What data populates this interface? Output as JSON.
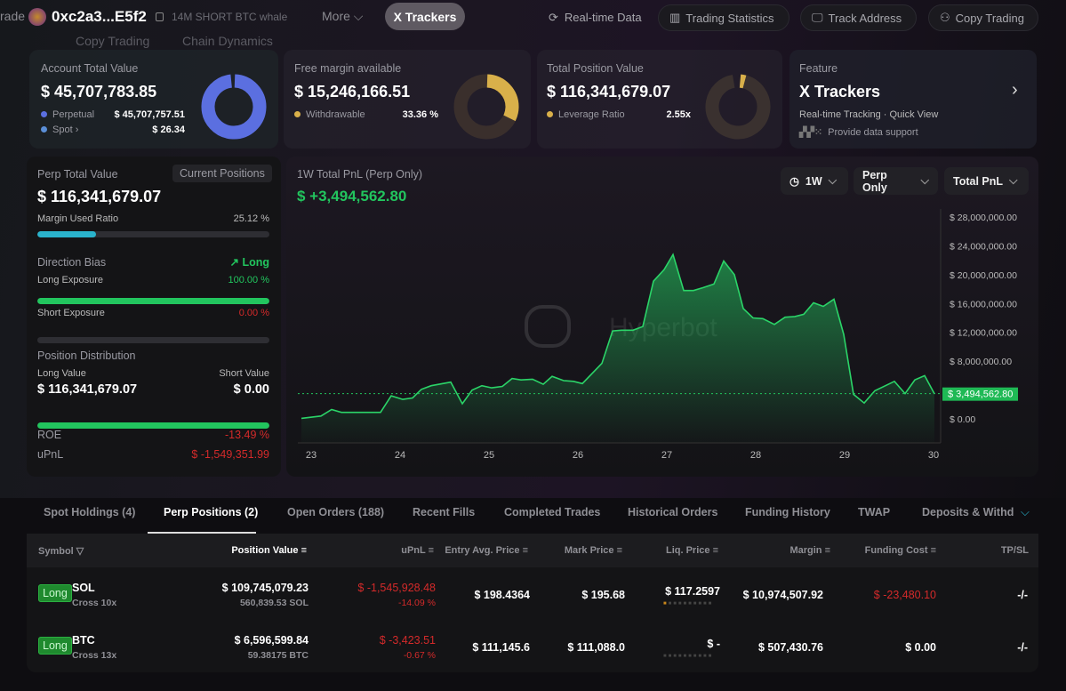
{
  "nav": {
    "trade": "rade",
    "copy_trading_ghost": "Copy Trading",
    "address": "0xc2a3...E5f2",
    "alias": "14M SHORT BTC whale",
    "chain_dynamics": "Chain Dynamics",
    "more": "More",
    "x_trackers": "X Trackers",
    "realtime": "Real-time Data",
    "trading_stats": "Trading Statistics",
    "track_address": "Track Address",
    "copy_trading": "Copy Trading"
  },
  "cards": {
    "account": {
      "title": "Account Total Value",
      "value": "$ 45,707,783.85",
      "perpetual_label": "Perpetual",
      "perpetual_value": "$ 45,707,757.51",
      "spot_label": "Spot",
      "spot_value": "$ 26.34",
      "color_perp": "#5b6fe0",
      "color_spot": "#5b8fd8"
    },
    "free_margin": {
      "title": "Free margin available",
      "value": "$ 15,246,166.51",
      "withdrawable_label": "Withdrawable",
      "withdrawable_value": "33.36 %",
      "fraction": 0.3336,
      "color": "#d9b04a"
    },
    "position": {
      "title": "Total Position Value",
      "value": "$ 116,341,679.07",
      "leverage_label": "Leverage Ratio",
      "leverage_value": "2.55x",
      "color": "#d9b04a"
    },
    "feature": {
      "title": "Feature",
      "name": "X Trackers",
      "desc": "Real-time Tracking · Quick View",
      "support": "Provide data support"
    }
  },
  "perp": {
    "title": "Perp Total Value",
    "current_positions": "Current Positions",
    "value": "$ 116,341,679.07",
    "margin_label": "Margin Used Ratio",
    "margin_value": "25.12 %",
    "margin_fraction": 0.2512,
    "bias_label": "Direction Bias",
    "bias_value": "Long",
    "long_exposure_label": "Long Exposure",
    "long_exposure_value": "100.00 %",
    "short_exposure_label": "Short Exposure",
    "short_exposure_value": "0.00 %",
    "distribution_label": "Position Distribution",
    "long_value_label": "Long Value",
    "long_value": "$ 116,341,679.07",
    "short_value_label": "Short Value",
    "short_value": "$ 0.00",
    "roe_label": "ROE",
    "roe_value": "-13.49 %",
    "upnl_label": "uPnL",
    "upnl_value": "$ -1,549,351.99"
  },
  "chart_header": {
    "title": "1W Total PnL (Perp Only)",
    "value": "$ +3,494,562.80",
    "period": "1W",
    "scope": "Perp Only",
    "metric": "Total PnL",
    "watermark": "Hyperbot"
  },
  "chart_data": {
    "type": "area",
    "title": "1W Total PnL (Perp Only)",
    "xlabel": "",
    "ylabel": "",
    "xlim": [
      23,
      30
    ],
    "ylim": [
      0,
      28000000
    ],
    "grid": false,
    "color": "#22c55e",
    "x_ticks": [
      "23",
      "24",
      "25",
      "26",
      "27",
      "28",
      "29",
      "30"
    ],
    "y_ticks": [
      "$ 0.00",
      "$ 8,000,000.00",
      "$ 12,000,000.00",
      "$ 16,000,000.00",
      "$ 20,000,000.00",
      "$ 24,000,000.00",
      "$ 28,000,000.00"
    ],
    "y_tick_values": [
      0,
      8000000,
      12000000,
      16000000,
      20000000,
      24000000,
      28000000
    ],
    "current_label": "$ 3,494,562.80",
    "current_value": 3494562.8,
    "points": [
      [
        22.89,
        80000
      ],
      [
        23.11,
        400000
      ],
      [
        23.23,
        1300000
      ],
      [
        23.34,
        900000
      ],
      [
        23.78,
        900000
      ],
      [
        23.9,
        3200000
      ],
      [
        24.03,
        2700000
      ],
      [
        24.14,
        2900000
      ],
      [
        24.24,
        4100000
      ],
      [
        24.35,
        4600000
      ],
      [
        24.57,
        5100000
      ],
      [
        24.7,
        2100000
      ],
      [
        24.81,
        4000000
      ],
      [
        24.92,
        4600000
      ],
      [
        25.03,
        4300000
      ],
      [
        25.15,
        4500000
      ],
      [
        25.26,
        5600000
      ],
      [
        25.36,
        5400000
      ],
      [
        25.49,
        5500000
      ],
      [
        25.61,
        4800000
      ],
      [
        25.71,
        5900000
      ],
      [
        25.84,
        5300000
      ],
      [
        25.95,
        5200000
      ],
      [
        26.05,
        4900000
      ],
      [
        26.16,
        6300000
      ],
      [
        26.27,
        7700000
      ],
      [
        26.39,
        12200000
      ],
      [
        26.49,
        12300000
      ],
      [
        26.62,
        12300000
      ],
      [
        26.73,
        12800000
      ],
      [
        26.85,
        19100000
      ],
      [
        26.97,
        20700000
      ],
      [
        27.07,
        22800000
      ],
      [
        27.19,
        17800000
      ],
      [
        27.3,
        17800000
      ],
      [
        27.41,
        18200000
      ],
      [
        27.53,
        18700000
      ],
      [
        27.64,
        21900000
      ],
      [
        27.76,
        20000000
      ],
      [
        27.86,
        15300000
      ],
      [
        27.97,
        14000000
      ],
      [
        28.08,
        13900000
      ],
      [
        28.21,
        13100000
      ],
      [
        28.33,
        14100000
      ],
      [
        28.44,
        14200000
      ],
      [
        28.54,
        14500000
      ],
      [
        28.65,
        16100000
      ],
      [
        28.76,
        15600000
      ],
      [
        28.88,
        16600000
      ],
      [
        28.99,
        11700000
      ],
      [
        29.1,
        3400000
      ],
      [
        29.22,
        2200000
      ],
      [
        29.34,
        3900000
      ],
      [
        29.56,
        5200000
      ],
      [
        29.68,
        3500000
      ],
      [
        29.79,
        5400000
      ],
      [
        29.9,
        6000000
      ],
      [
        30.01,
        3494562.8
      ]
    ]
  },
  "tabs": [
    "Spot Holdings (4)",
    "Perp Positions (2)",
    "Open Orders (188)",
    "Recent Fills",
    "Completed Trades",
    "Historical Orders",
    "Funding History",
    "TWAP",
    "Deposits & Withd"
  ],
  "active_tab": 1,
  "table": {
    "headers": [
      "Symbol",
      "Position Value",
      "uPnL",
      "Entry Avg. Price",
      "Mark Price",
      "Liq. Price",
      "Margin",
      "Funding Cost",
      "TP/SL"
    ],
    "rows": [
      {
        "side": "Long",
        "symbol": "SOL",
        "mode": "Cross 10x",
        "position_value": "$ 109,745,079.23",
        "size": "560,839.53 SOL",
        "upnl": "$ -1,545,928.48",
        "upnl_pct": "-14.09 %",
        "entry": "$ 198.4364",
        "mark": "$ 195.68",
        "liq": "$ 117.2597",
        "margin": "$ 10,974,507.92",
        "funding": "$ -23,480.10",
        "tpsl": "-/-"
      },
      {
        "side": "Long",
        "symbol": "BTC",
        "mode": "Cross 13x",
        "position_value": "$ 6,596,599.84",
        "size": "59.38175 BTC",
        "upnl": "$ -3,423.51",
        "upnl_pct": "-0.67 %",
        "entry": "$ 111,145.6",
        "mark": "$ 111,088.0",
        "liq": "$ -",
        "margin": "$ 507,430.76",
        "funding": "$ 0.00",
        "tpsl": "-/-"
      }
    ]
  }
}
